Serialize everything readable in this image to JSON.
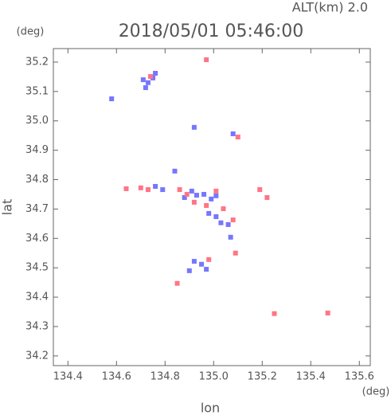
{
  "chart_data": {
    "type": "scatter",
    "title": "2018/05/01 05:46:00",
    "annotations": [
      "ALT(km) 2.0",
      "(deg)",
      "(deg)"
    ],
    "x_label": "lon",
    "y_label": "lat",
    "xlim": [
      134.34,
      135.645
    ],
    "ylim": [
      34.167,
      35.246
    ],
    "xticks": [
      134.4,
      134.6,
      134.8,
      {
        "value": 135.0,
        "label": "135.0"
      },
      135.2,
      135.4,
      135.6
    ],
    "yticks": [
      34.2,
      34.3,
      34.4,
      34.5,
      34.6,
      34.7,
      34.8,
      34.9,
      {
        "value": 35.0,
        "label": "35.0"
      },
      35.1,
      35.2
    ],
    "series": [
      {
        "color": "#7676ff",
        "x": [
          134.71,
          134.73,
          134.75,
          134.76,
          134.72,
          134.58,
          134.92,
          134.84,
          134.76,
          134.79,
          134.88,
          134.91,
          134.96,
          134.99,
          135.01,
          134.98,
          135.01,
          135.03,
          135.07,
          135.06,
          134.92,
          134.95,
          134.9,
          134.97,
          134.93,
          135.08
        ],
        "y": [
          35.14,
          35.13,
          35.146,
          35.162,
          35.113,
          35.075,
          34.978,
          34.829,
          34.777,
          34.766,
          34.739,
          34.761,
          34.75,
          34.734,
          34.745,
          34.685,
          34.674,
          34.653,
          34.604,
          34.647,
          34.522,
          34.512,
          34.49,
          34.495,
          34.747,
          34.956
        ]
      },
      {
        "color": "#ff7585",
        "x": [
          134.97,
          134.64,
          134.7,
          134.73,
          134.86,
          134.89,
          134.92,
          134.97,
          135.04,
          135.08,
          135.09,
          134.98,
          134.85,
          135.1,
          135.19,
          135.22,
          135.25,
          135.47,
          135.01,
          134.74
        ],
        "y": [
          35.208,
          34.769,
          34.772,
          34.766,
          34.766,
          34.75,
          34.723,
          34.712,
          34.701,
          34.663,
          34.55,
          34.528,
          34.447,
          34.945,
          34.766,
          34.739,
          34.344,
          34.346,
          34.761,
          35.151
        ]
      }
    ]
  }
}
